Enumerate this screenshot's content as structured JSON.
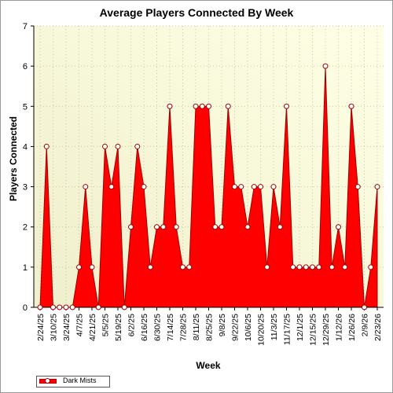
{
  "chart_data": {
    "type": "area",
    "title": "Average Players Connected By Week",
    "xlabel": "Week",
    "ylabel": "Players Connected",
    "ylim": [
      0,
      7
    ],
    "yticks": [
      0,
      1,
      2,
      3,
      4,
      5,
      6,
      7
    ],
    "x_tick_labels": [
      "2/24/25",
      "3/10/25",
      "3/24/25",
      "4/7/25",
      "4/21/25",
      "5/5/25",
      "5/19/25",
      "6/2/25",
      "6/16/25",
      "6/30/25",
      "7/14/25",
      "7/28/25",
      "8/11/25",
      "8/25/25",
      "9/8/25",
      "9/22/25",
      "10/6/25",
      "10/20/25",
      "11/3/25",
      "11/17/25",
      "12/1/25",
      "12/15/25",
      "12/29/25",
      "1/12/26",
      "1/26/26",
      "2/9/26",
      "2/23/26"
    ],
    "grid": true,
    "legend": "bottom-left",
    "series": [
      {
        "name": "Dark Mists",
        "color": "#ff0000",
        "values": [
          0,
          4,
          0,
          0,
          0,
          0,
          1,
          3,
          1,
          0,
          4,
          3,
          4,
          0,
          2,
          4,
          3,
          1,
          2,
          2,
          5,
          2,
          1,
          1,
          5,
          5,
          5,
          2,
          2,
          5,
          3,
          3,
          2,
          3,
          3,
          1,
          3,
          2,
          5,
          1,
          1,
          1,
          1,
          1,
          6,
          1,
          2,
          1,
          5,
          3,
          0,
          1,
          3
        ]
      }
    ]
  }
}
